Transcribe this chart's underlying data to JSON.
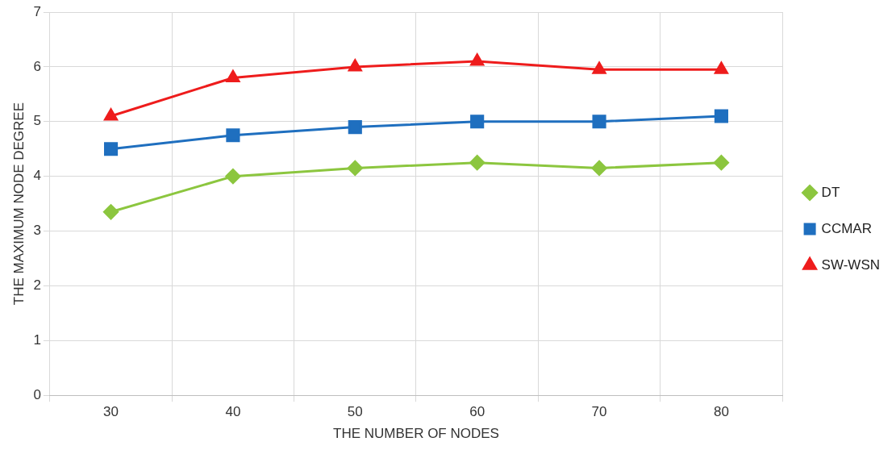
{
  "chart_data": {
    "type": "line",
    "xlabel": "THE NUMBER OF NODES",
    "ylabel": "THE MAXIMUM NODE DEGREE",
    "categories": [
      "30",
      "40",
      "50",
      "60",
      "70",
      "80"
    ],
    "series": [
      {
        "name": "DT",
        "color": "#8cc63f",
        "marker": "diamond",
        "values": [
          3.35,
          4.0,
          4.15,
          4.25,
          4.15,
          4.25
        ]
      },
      {
        "name": "CCMAR",
        "color": "#1f6fbf",
        "marker": "square",
        "values": [
          4.5,
          4.75,
          4.9,
          5.0,
          5.0,
          5.1
        ]
      },
      {
        "name": "SW-WSN",
        "color": "#ee1c1c",
        "marker": "triangle",
        "values": [
          5.1,
          5.8,
          6.0,
          6.1,
          5.95,
          5.95
        ]
      }
    ],
    "ylim": [
      0,
      7
    ],
    "yticks": [
      0,
      1,
      2,
      3,
      4,
      5,
      6,
      7
    ],
    "grid": true,
    "legend": "right"
  }
}
